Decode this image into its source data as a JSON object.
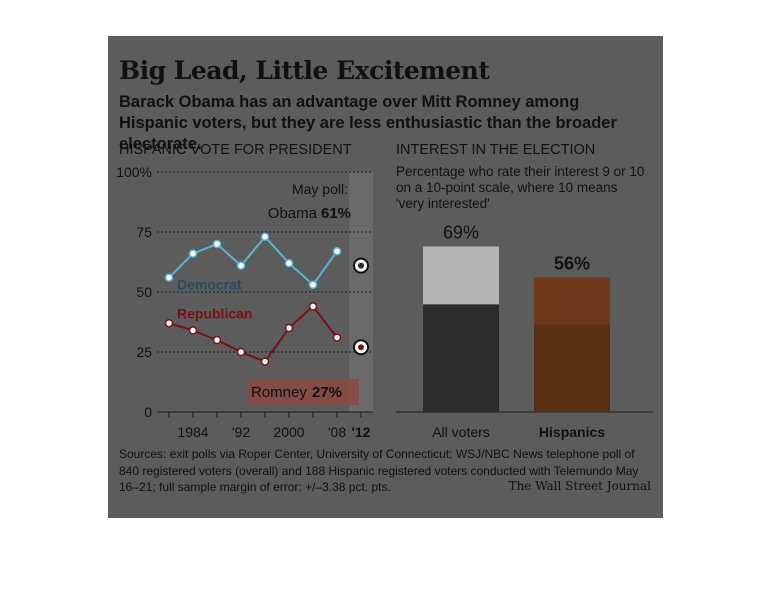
{
  "header": {
    "title": "Big Lead, Little Excitement",
    "subtitle": "Barack Obama has an advantage over Mitt Romney among Hispanic voters, but they are less enthusiastic than the broader electorate."
  },
  "colors": {
    "democrat": "#58b5d6",
    "democrat_dark": "#2a4a60",
    "republican": "#7a1212",
    "all_voters_bar": "#2b2b2b",
    "all_voters_bar_light": "#b5b5b5",
    "hispanics_bar": "#5a2e10",
    "hispanics_bar_light": "#7a4020",
    "card_background": "#5c5c5c"
  },
  "chart_data": [
    {
      "type": "line",
      "title": "HISPANIC VOTE FOR PRESIDENT",
      "ylim": [
        0,
        100
      ],
      "y_ticks": [
        "0",
        "25",
        "50",
        "75",
        "100%"
      ],
      "x_tick_labels": [
        "1984",
        "'92",
        "2000",
        "'08",
        "'12"
      ],
      "series": [
        {
          "name": "Democrat",
          "x": [
            1980,
            1984,
            1988,
            1992,
            1996,
            2000,
            2004,
            2008
          ],
          "values": [
            56,
            66,
            70,
            61,
            73,
            62,
            53,
            67
          ]
        },
        {
          "name": "Republican",
          "x": [
            1980,
            1984,
            1988,
            1992,
            1996,
            2000,
            2004,
            2008
          ],
          "values": [
            37,
            34,
            30,
            25,
            21,
            35,
            44,
            31
          ]
        }
      ],
      "poll": {
        "label": "May poll:",
        "x": 2012,
        "obama": {
          "name": "Obama",
          "value": 61,
          "value_text": "61%"
        },
        "romney": {
          "name": "Romney",
          "value": 27,
          "value_text": "27%"
        }
      }
    },
    {
      "type": "bar",
      "title": "INTEREST IN THE ELECTION",
      "subtitle": "Percentage who rate their interest 9 or 10 on a 10-point scale, where 10 means 'very interested'",
      "categories": [
        "All voters",
        "Hispanics"
      ],
      "values": [
        69,
        56
      ],
      "value_labels": [
        "69%",
        "56%"
      ]
    }
  ],
  "footer": {
    "sources": "Sources: exit polls via Roper Center, University of Connecticut; WSJ/NBC News telephone poll of 840 registered voters (overall) and 188 Hispanic registered voters conducted with Telemundo May 16–21; full sample margin of error: +/–3.38 pct. pts.",
    "credit": "The Wall Street Journal"
  }
}
